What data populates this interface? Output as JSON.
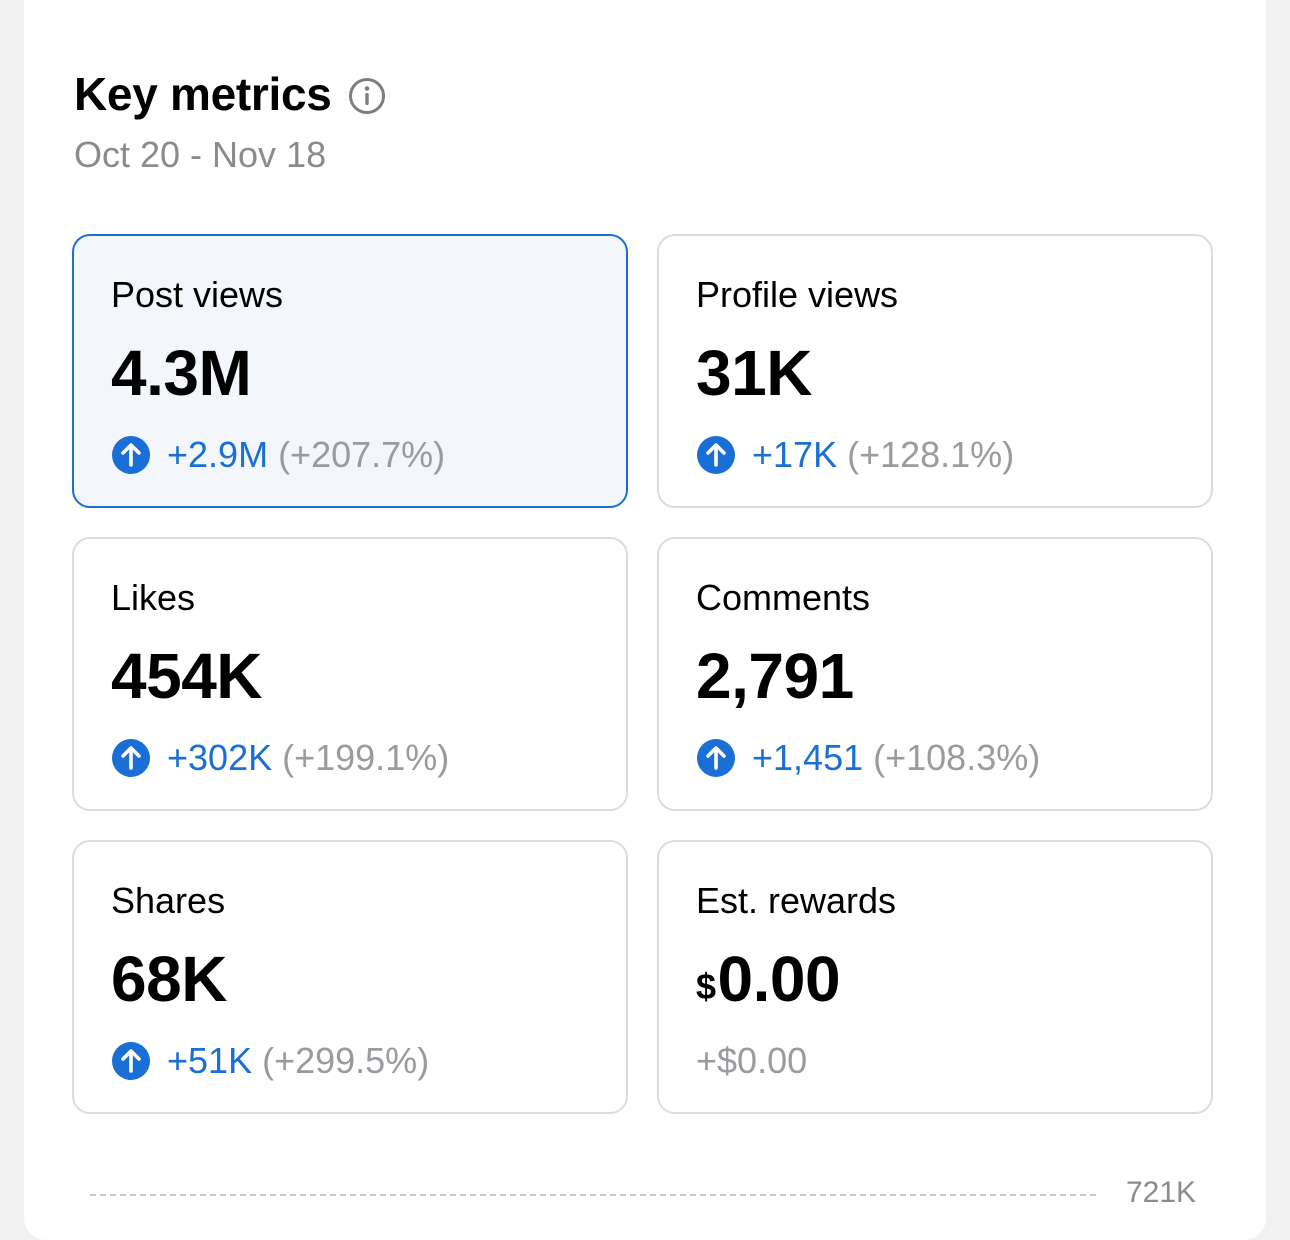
{
  "header": {
    "title": "Key metrics",
    "date_range": "Oct 20 - Nov 18"
  },
  "metrics": [
    {
      "label": "Post views",
      "value": "4.3M",
      "delta": "+2.9M",
      "pct": "(+207.7%)",
      "selected": true
    },
    {
      "label": "Profile views",
      "value": "31K",
      "delta": "+17K",
      "pct": "(+128.1%)"
    },
    {
      "label": "Likes",
      "value": "454K",
      "delta": "+302K",
      "pct": "(+199.1%)"
    },
    {
      "label": "Comments",
      "value": "2,791",
      "delta": "+1,451",
      "pct": "(+108.3%)"
    },
    {
      "label": "Shares",
      "value": "68K",
      "delta": "+51K",
      "pct": "(+299.5%)"
    },
    {
      "label": "Est. rewards",
      "currency": "$",
      "value": "0.00",
      "delta": "+$0.00"
    }
  ],
  "chart": {
    "max_tick": "721K"
  },
  "colors": {
    "accent": "#1a6fd6",
    "muted": "#9a9a9f",
    "border": "#dcdcdf",
    "selected_bg": "#f3f6fb"
  },
  "icons": {
    "info": "info-icon",
    "trend_up": "arrow-up-circle-icon"
  }
}
